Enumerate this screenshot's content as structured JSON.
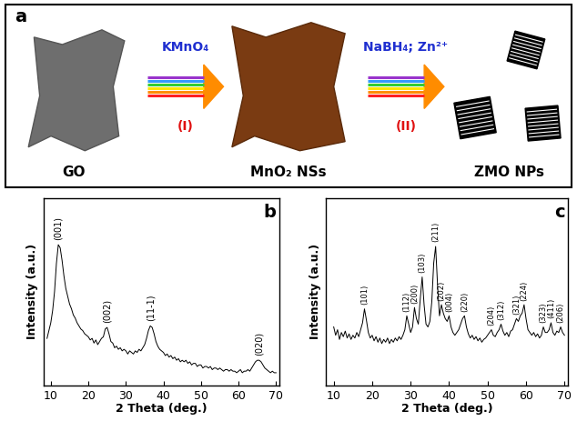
{
  "diagram": {
    "panel": "a",
    "nodes": [
      {
        "label": "GO"
      },
      {
        "label": "MnO₂ NSs"
      },
      {
        "label": "ZMO NPs"
      }
    ],
    "steps": [
      {
        "reagent": "KMnO₄",
        "label": "(I)"
      },
      {
        "reagent": "NaBH₄; Zn²⁺",
        "label": "(II)"
      }
    ]
  },
  "chart_data": [
    {
      "type": "line",
      "panel": "b",
      "xlabel": "2 Theta (deg.)",
      "ylabel": "Intensity (a.u.)",
      "color": "#000000",
      "xlim": [
        8,
        71
      ],
      "xticks": [
        10,
        20,
        30,
        40,
        50,
        60,
        70
      ],
      "ylim": [
        0,
        120
      ],
      "yticks": [],
      "tick_labels": "x",
      "x": [
        9.0,
        9.5,
        10.0,
        10.5,
        11.0,
        11.5,
        12.0,
        12.5,
        13.0,
        13.5,
        14.0,
        14.5,
        15.0,
        15.5,
        16.0,
        16.5,
        17.0,
        17.5,
        18.0,
        18.5,
        19.0,
        19.5,
        20.0,
        20.5,
        21.0,
        21.5,
        22.0,
        22.5,
        23.0,
        23.5,
        24.0,
        24.5,
        25.0,
        25.5,
        26.0,
        26.5,
        27.0,
        27.5,
        28.0,
        28.5,
        29.0,
        29.5,
        30.0,
        30.5,
        31.0,
        31.5,
        32.0,
        32.5,
        33.0,
        33.5,
        34.0,
        34.5,
        35.0,
        35.5,
        36.0,
        36.5,
        37.0,
        37.5,
        38.0,
        38.5,
        39.0,
        39.5,
        40.0,
        40.5,
        41.0,
        41.5,
        42.0,
        42.5,
        43.0,
        43.5,
        44.0,
        44.5,
        45.0,
        45.5,
        46.0,
        46.5,
        47.0,
        47.5,
        48.0,
        48.5,
        49.0,
        49.5,
        50.0,
        50.5,
        51.0,
        51.5,
        52.0,
        52.5,
        53.0,
        53.5,
        54.0,
        54.5,
        55.0,
        55.5,
        56.0,
        56.5,
        57.0,
        57.5,
        58.0,
        58.5,
        59.0,
        59.5,
        60.0,
        60.5,
        61.0,
        61.5,
        62.0,
        62.5,
        63.0,
        63.5,
        64.0,
        64.5,
        65.0,
        65.5,
        66.0,
        66.5,
        67.0,
        67.5,
        68.0,
        68.5,
        69.0,
        69.5,
        70.0
      ],
      "values": [
        30,
        35,
        40,
        48,
        60,
        78,
        90,
        88,
        80,
        70,
        62,
        57,
        52,
        49,
        45,
        43,
        40,
        38,
        36,
        35,
        33,
        32,
        31,
        29,
        30,
        27,
        29,
        26,
        28,
        30,
        31,
        36,
        37,
        33,
        28,
        27,
        24,
        25,
        23,
        24,
        22,
        23,
        22,
        20,
        22,
        21,
        20,
        22,
        21,
        23,
        22,
        24,
        26,
        30,
        35,
        38,
        37,
        33,
        28,
        25,
        23,
        22,
        21,
        19,
        20,
        18,
        19,
        17,
        18,
        16,
        17,
        15,
        16,
        15,
        16,
        14,
        15,
        13,
        14,
        14,
        12,
        13,
        13,
        11,
        12,
        12,
        11,
        12,
        10,
        11,
        11,
        10,
        11,
        10,
        9,
        10,
        10,
        9,
        10,
        9,
        9,
        8,
        9,
        10,
        8,
        9,
        9,
        10,
        9,
        11,
        13,
        15,
        16,
        16,
        15,
        13,
        11,
        10,
        9,
        8,
        9,
        8,
        8
      ],
      "annotations": [
        {
          "text": "(001)",
          "x": 12.0
        },
        {
          "text": "(002)",
          "x": 25.0
        },
        {
          "text": "(11-1)",
          "x": 36.5
        },
        {
          "text": "(020)",
          "x": 65.5
        }
      ]
    },
    {
      "type": "line",
      "panel": "c",
      "xlabel": "2 Theta (deg.)",
      "ylabel": "Intensity (a.u.)",
      "color": "#000000",
      "xlim": [
        8,
        71
      ],
      "xticks": [
        10,
        20,
        30,
        40,
        50,
        60,
        70
      ],
      "ylim": [
        0,
        135
      ],
      "yticks": [],
      "tick_labels": "x",
      "x": [
        10.0,
        10.5,
        11.0,
        11.5,
        12.0,
        12.5,
        13.0,
        13.5,
        14.0,
        14.5,
        15.0,
        15.5,
        16.0,
        16.5,
        17.0,
        17.5,
        18.0,
        18.5,
        19.0,
        19.5,
        20.0,
        20.5,
        21.0,
        21.5,
        22.0,
        22.5,
        23.0,
        23.5,
        24.0,
        24.5,
        25.0,
        25.5,
        26.0,
        26.5,
        27.0,
        27.5,
        28.0,
        28.5,
        29.0,
        29.5,
        30.0,
        30.5,
        31.0,
        31.5,
        32.0,
        32.5,
        33.0,
        33.5,
        34.0,
        34.5,
        35.0,
        35.5,
        36.0,
        36.5,
        37.0,
        37.5,
        38.0,
        38.5,
        39.0,
        39.5,
        40.0,
        40.5,
        41.0,
        41.5,
        42.0,
        42.5,
        43.0,
        43.5,
        44.0,
        44.5,
        45.0,
        45.5,
        46.0,
        46.5,
        47.0,
        47.5,
        48.0,
        48.5,
        49.0,
        49.5,
        50.0,
        50.5,
        51.0,
        51.5,
        52.0,
        52.5,
        53.0,
        53.5,
        54.0,
        54.5,
        55.0,
        55.5,
        56.0,
        56.5,
        57.0,
        57.5,
        58.0,
        58.5,
        59.0,
        59.5,
        60.0,
        60.5,
        61.0,
        61.5,
        62.0,
        62.5,
        63.0,
        63.5,
        64.0,
        64.5,
        65.0,
        65.5,
        66.0,
        66.5,
        67.0,
        67.5,
        68.0,
        68.5,
        69.0,
        69.5,
        70.0
      ],
      "values": [
        42,
        36,
        40,
        33,
        38,
        35,
        39,
        34,
        37,
        33,
        36,
        34,
        38,
        35,
        40,
        45,
        55,
        47,
        38,
        34,
        36,
        32,
        35,
        31,
        34,
        30,
        33,
        31,
        34,
        30,
        33,
        31,
        34,
        32,
        35,
        33,
        36,
        40,
        50,
        44,
        38,
        42,
        56,
        48,
        44,
        62,
        78,
        58,
        44,
        42,
        46,
        60,
        88,
        100,
        72,
        50,
        58,
        52,
        48,
        46,
        50,
        42,
        38,
        36,
        38,
        40,
        44,
        48,
        50,
        42,
        37,
        34,
        36,
        33,
        35,
        32,
        34,
        31,
        33,
        34,
        36,
        38,
        40,
        36,
        35,
        38,
        40,
        44,
        39,
        36,
        38,
        35,
        39,
        40,
        44,
        48,
        46,
        50,
        52,
        58,
        48,
        40,
        38,
        36,
        38,
        35,
        37,
        34,
        36,
        42,
        38,
        38,
        40,
        45,
        38,
        36,
        39,
        38,
        42,
        38,
        36
      ],
      "annotations": [
        {
          "text": "(101)",
          "x": 18.0
        },
        {
          "text": "(112)",
          "x": 29.0
        },
        {
          "text": "(200)",
          "x": 31.0
        },
        {
          "text": "(103)",
          "x": 33.0
        },
        {
          "text": "(211)",
          "x": 36.5
        },
        {
          "text": "(202)",
          "x": 38.0
        },
        {
          "text": "(004)",
          "x": 40.0
        },
        {
          "text": "(220)",
          "x": 44.0
        },
        {
          "text": "(204)",
          "x": 51.0
        },
        {
          "text": "(312)",
          "x": 53.5
        },
        {
          "text": "(321)",
          "x": 57.5
        },
        {
          "text": "(224)",
          "x": 59.5
        },
        {
          "text": "(323)",
          "x": 64.5
        },
        {
          "text": "(411)",
          "x": 66.5
        },
        {
          "text": "(206)",
          "x": 69.0
        }
      ]
    }
  ]
}
